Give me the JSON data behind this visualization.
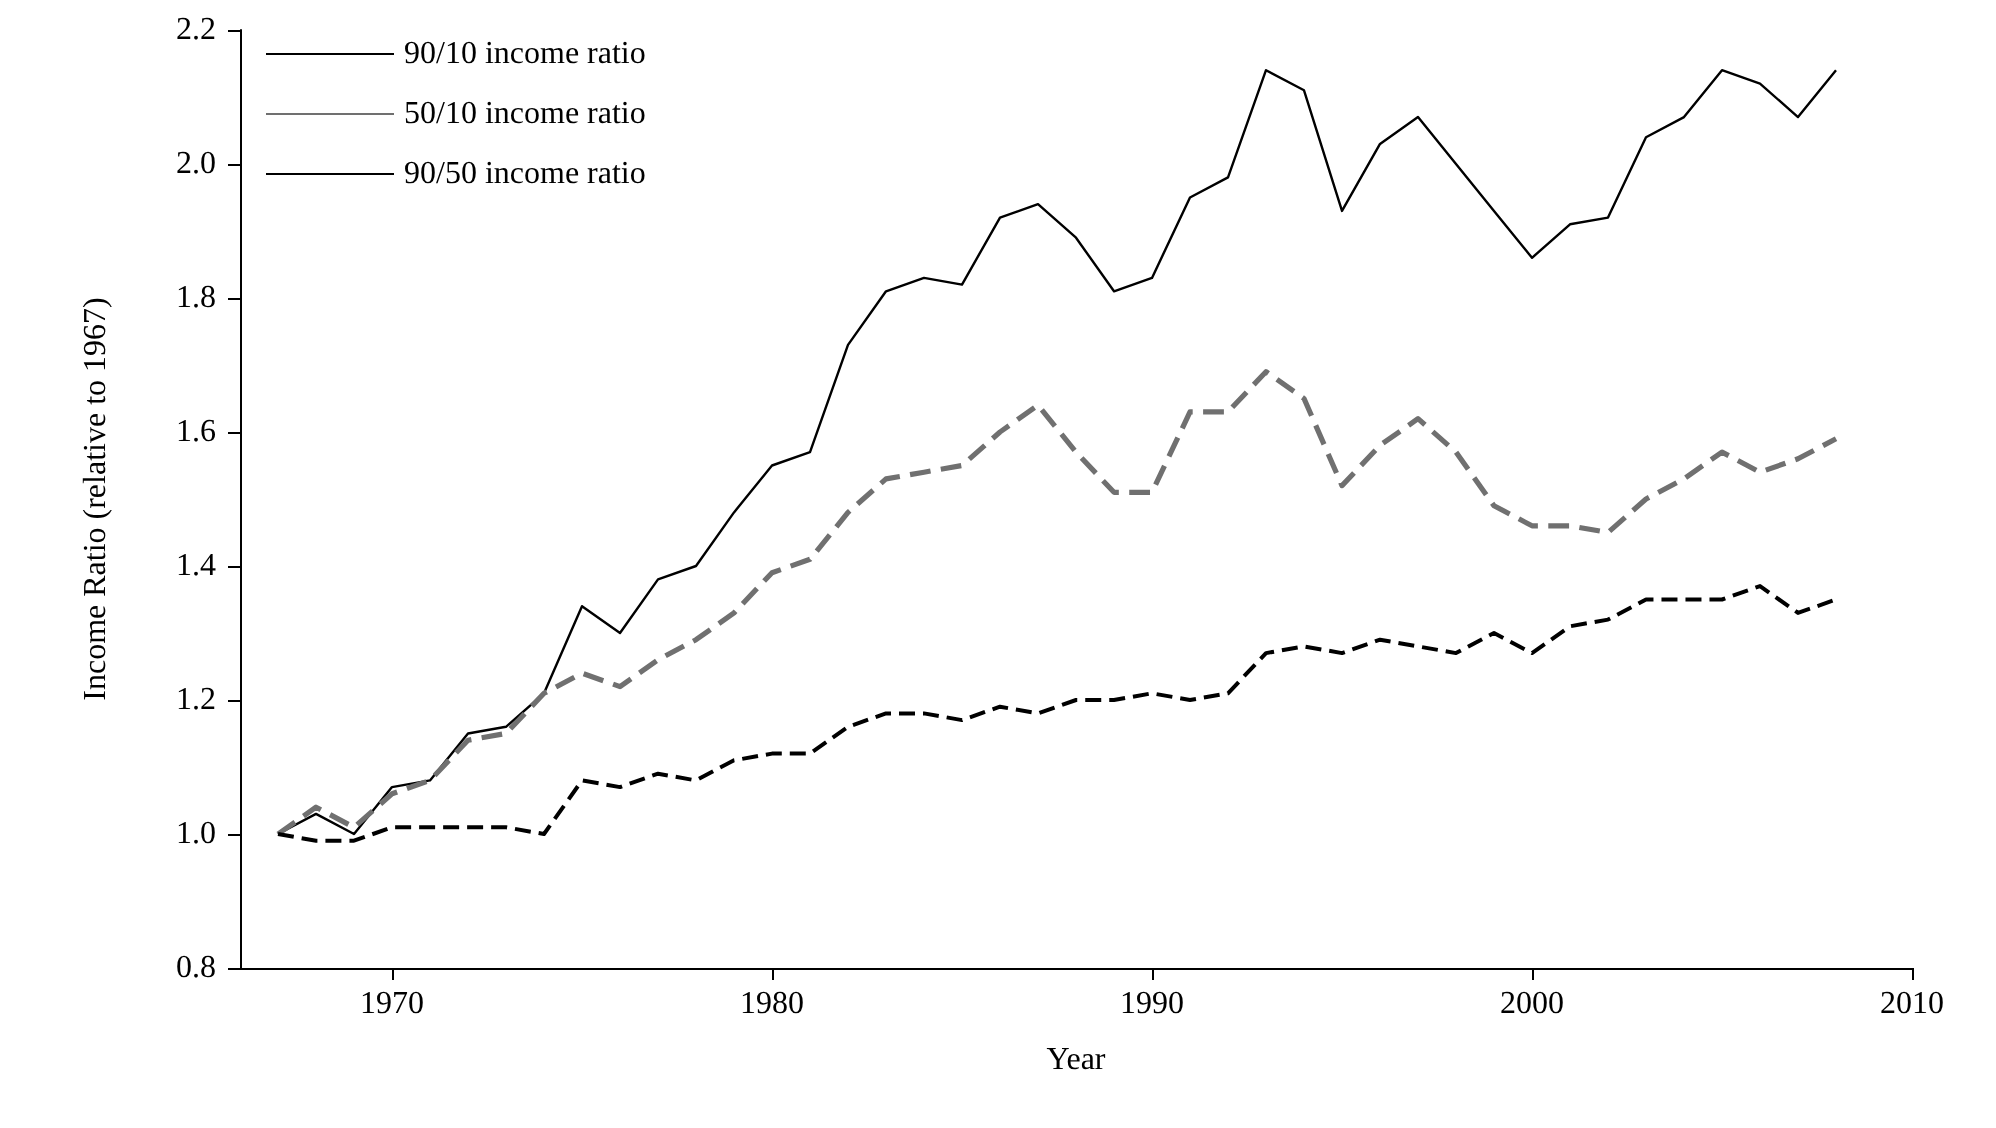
{
  "chart_data": {
    "type": "line",
    "xlabel": "Year",
    "ylabel": "Income Ratio (relative to 1967)",
    "x": [
      1967,
      1968,
      1969,
      1970,
      1971,
      1972,
      1973,
      1974,
      1975,
      1976,
      1977,
      1978,
      1979,
      1980,
      1981,
      1982,
      1983,
      1984,
      1985,
      1986,
      1987,
      1988,
      1989,
      1990,
      1991,
      1992,
      1993,
      1994,
      1995,
      1996,
      1997,
      1998,
      1999,
      2000,
      2001,
      2002,
      2003,
      2004,
      2005,
      2006,
      2007,
      2008
    ],
    "series": [
      {
        "name": "90/10 income ratio",
        "color": "#000000",
        "line_style": "solid",
        "values": [
          1.0,
          1.03,
          1.0,
          1.07,
          1.08,
          1.15,
          1.16,
          1.21,
          1.34,
          1.3,
          1.38,
          1.4,
          1.48,
          1.55,
          1.57,
          1.73,
          1.81,
          1.83,
          1.82,
          1.92,
          1.94,
          1.89,
          1.81,
          1.83,
          1.95,
          1.98,
          2.14,
          2.11,
          1.93,
          2.03,
          2.07,
          2.0,
          1.93,
          1.86,
          1.91,
          1.92,
          2.04,
          2.07,
          2.14,
          2.12,
          2.07,
          2.14
        ]
      },
      {
        "name": "50/10 income ratio",
        "color": "#707070",
        "line_style": "dashed",
        "values": [
          1.0,
          1.04,
          1.01,
          1.06,
          1.08,
          1.14,
          1.15,
          1.21,
          1.24,
          1.22,
          1.26,
          1.29,
          1.33,
          1.39,
          1.41,
          1.48,
          1.53,
          1.54,
          1.55,
          1.6,
          1.64,
          1.57,
          1.51,
          1.51,
          1.63,
          1.63,
          1.69,
          1.65,
          1.52,
          1.58,
          1.62,
          1.57,
          1.49,
          1.46,
          1.46,
          1.45,
          1.5,
          1.53,
          1.57,
          1.54,
          1.56,
          1.59
        ]
      },
      {
        "name": "90/50 income ratio",
        "color": "#000000",
        "line_style": "dashed",
        "values": [
          1.0,
          0.99,
          0.99,
          1.01,
          1.01,
          1.01,
          1.01,
          1.0,
          1.08,
          1.07,
          1.09,
          1.08,
          1.11,
          1.12,
          1.12,
          1.16,
          1.18,
          1.18,
          1.17,
          1.19,
          1.18,
          1.2,
          1.2,
          1.21,
          1.2,
          1.21,
          1.27,
          1.28,
          1.27,
          1.29,
          1.28,
          1.27,
          1.3,
          1.27,
          1.31,
          1.32,
          1.35,
          1.35,
          1.35,
          1.37,
          1.33,
          1.35
        ]
      }
    ],
    "xlim": [
      1966,
      2010
    ],
    "xticks": [
      1970,
      1980,
      1990,
      2000,
      2010
    ],
    "ylim": [
      0.8,
      2.2
    ],
    "yticks": [
      {
        "value": 0.8,
        "label": "0.8"
      },
      {
        "value": 1,
        "label": "1.0"
      },
      {
        "value": 1.2,
        "label": "1.2"
      },
      {
        "value": 1.4,
        "label": "1.4"
      },
      {
        "value": 1.6,
        "label": "1.6"
      },
      {
        "value": 1.8,
        "label": "1.8"
      },
      {
        "value": 2,
        "label": "2.0"
      },
      {
        "value": 2.2,
        "label": "2.2"
      }
    ],
    "legend": "top left",
    "grid": false,
    "marker": "none"
  }
}
